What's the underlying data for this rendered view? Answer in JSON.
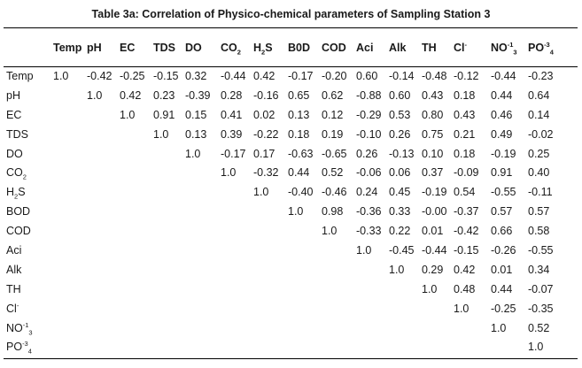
{
  "title": "Table 3a: Correlation of Physico-chemical parameters of Sampling Station 3",
  "columns": [
    {
      "base": "Temp",
      "sub": "",
      "sup": ""
    },
    {
      "base": "pH",
      "sub": "",
      "sup": ""
    },
    {
      "base": "EC",
      "sub": "",
      "sup": ""
    },
    {
      "base": "TDS",
      "sub": "",
      "sup": ""
    },
    {
      "base": "DO",
      "sub": "",
      "sup": ""
    },
    {
      "base": "CO",
      "sub": "2",
      "sup": ""
    },
    {
      "base": "H",
      "sub": "2",
      "sup": "",
      "suffix": "S"
    },
    {
      "base": "B0D",
      "sub": "",
      "sup": ""
    },
    {
      "base": "COD",
      "sub": "",
      "sup": ""
    },
    {
      "base": "Aci",
      "sub": "",
      "sup": ""
    },
    {
      "base": "Alk",
      "sub": "",
      "sup": ""
    },
    {
      "base": "TH",
      "sub": "",
      "sup": ""
    },
    {
      "base": "Cl",
      "sub": "",
      "sup": "-"
    },
    {
      "base": "NO",
      "sub": "3",
      "sup": "-1"
    },
    {
      "base": "PO",
      "sub": "4",
      "sup": "-3"
    }
  ],
  "rows": [
    {
      "label": {
        "base": "Temp",
        "sub": "",
        "sup": ""
      },
      "values": [
        "1.0",
        "-0.42",
        "-0.25",
        "-0.15",
        "0.32",
        "-0.44",
        "0.42",
        "-0.17",
        "-0.20",
        "0.60",
        "-0.14",
        "-0.48",
        "-0.12",
        "-0.44",
        "-0.23"
      ]
    },
    {
      "label": {
        "base": "pH",
        "sub": "",
        "sup": ""
      },
      "values": [
        "",
        "1.0",
        "0.42",
        "0.23",
        "-0.39",
        "0.28",
        "-0.16",
        "0.65",
        "0.62",
        "-0.88",
        "0.60",
        "0.43",
        "0.18",
        "0.44",
        "0.64"
      ]
    },
    {
      "label": {
        "base": "EC",
        "sub": "",
        "sup": ""
      },
      "values": [
        "",
        "",
        "1.0",
        "0.91",
        "0.15",
        "0.41",
        "0.02",
        "0.13",
        "0.12",
        "-0.29",
        "0.53",
        "0.80",
        "0.43",
        "0.46",
        "0.14"
      ]
    },
    {
      "label": {
        "base": "TDS",
        "sub": "",
        "sup": ""
      },
      "values": [
        "",
        "",
        "",
        "1.0",
        "0.13",
        "0.39",
        "-0.22",
        "0.18",
        "0.19",
        "-0.10",
        "0.26",
        "0.75",
        "0.21",
        "0.49",
        "-0.02"
      ]
    },
    {
      "label": {
        "base": "DO",
        "sub": "",
        "sup": ""
      },
      "values": [
        "",
        "",
        "",
        "",
        "1.0",
        "-0.17",
        "0.17",
        "-0.63",
        "-0.65",
        "0.26",
        "-0.13",
        "0.10",
        "0.18",
        "-0.19",
        "0.25"
      ]
    },
    {
      "label": {
        "base": "CO",
        "sub": "2",
        "sup": ""
      },
      "values": [
        "",
        "",
        "",
        "",
        "",
        "1.0",
        "-0.32",
        "0.44",
        "0.52",
        "-0.06",
        "0.06",
        "0.37",
        "-0.09",
        "0.91",
        "0.40"
      ]
    },
    {
      "label": {
        "base": "H",
        "sub": "2",
        "sup": "",
        "suffix": "S"
      },
      "values": [
        "",
        "",
        "",
        "",
        "",
        "",
        "1.0",
        "-0.40",
        "-0.46",
        "0.24",
        "0.45",
        "-0.19",
        "0.54",
        "-0.55",
        "-0.11"
      ]
    },
    {
      "label": {
        "base": "BOD",
        "sub": "",
        "sup": ""
      },
      "values": [
        "",
        "",
        "",
        "",
        "",
        "",
        "",
        "1.0",
        "0.98",
        "-0.36",
        "0.33",
        "-0.00",
        "-0.37",
        "0.57",
        "0.57"
      ]
    },
    {
      "label": {
        "base": "COD",
        "sub": "",
        "sup": ""
      },
      "values": [
        "",
        "",
        "",
        "",
        "",
        "",
        "",
        "",
        "1.0",
        "-0.33",
        "0.22",
        "0.01",
        "-0.42",
        "0.66",
        "0.58"
      ]
    },
    {
      "label": {
        "base": "Aci",
        "sub": "",
        "sup": ""
      },
      "values": [
        "",
        "",
        "",
        "",
        "",
        "",
        "",
        "",
        "",
        "1.0",
        "-0.45",
        "-0.44",
        "-0.15",
        "-0.26",
        "-0.55"
      ]
    },
    {
      "label": {
        "base": "Alk",
        "sub": "",
        "sup": ""
      },
      "values": [
        "",
        "",
        "",
        "",
        "",
        "",
        "",
        "",
        "",
        "",
        "1.0",
        "0.29",
        "0.42",
        "0.01",
        "0.34"
      ]
    },
    {
      "label": {
        "base": "TH",
        "sub": "",
        "sup": ""
      },
      "values": [
        "",
        "",
        "",
        "",
        "",
        "",
        "",
        "",
        "",
        "",
        "",
        "1.0",
        "0.48",
        "0.44",
        "-0.07"
      ]
    },
    {
      "label": {
        "base": "Cl",
        "sub": "",
        "sup": "-"
      },
      "values": [
        "",
        "",
        "",
        "",
        "",
        "",
        "",
        "",
        "",
        "",
        "",
        "",
        "1.0",
        "-0.25",
        "-0.35"
      ]
    },
    {
      "label": {
        "base": "NO",
        "sub": "3",
        "sup": "-1"
      },
      "values": [
        "",
        "",
        "",
        "",
        "",
        "",
        "",
        "",
        "",
        "",
        "",
        "",
        "",
        "1.0",
        "0.52"
      ]
    },
    {
      "label": {
        "base": "PO",
        "sub": "4",
        "sup": "-3"
      },
      "values": [
        "",
        "",
        "",
        "",
        "",
        "",
        "",
        "",
        "",
        "",
        "",
        "",
        "",
        "",
        "1.0"
      ]
    }
  ]
}
